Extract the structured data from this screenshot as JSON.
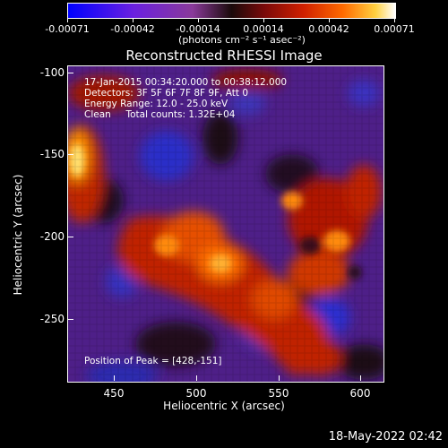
{
  "colorbar": {
    "labels": [
      "-0.00071",
      "-0.00042",
      "-0.00014",
      "0.00014",
      "0.00042",
      "0.00071"
    ],
    "units": "(photons cm⁻² s⁻¹ asec⁻²)"
  },
  "plot": {
    "title": "Reconstructed RHESSI Image",
    "info": {
      "time": "17-Jan-2015 00:34:20.000 to 00:38:12.000",
      "detectors": "Detectors: 3F 5F 6F 7F 8F 9F, Att 0",
      "energy": "Energy Range: 12.0 - 25.0 keV",
      "method": "Clean     Total counts: 1.32E+04",
      "peak": "Position of Peak = [428,-151]"
    },
    "xlabel": "Heliocentric X (arcsec)",
    "ylabel": "Heliocentric Y (arcsec)",
    "xticks": [
      "450",
      "500",
      "550",
      "600"
    ],
    "yticks": [
      "-100",
      "-150",
      "-200",
      "-250"
    ]
  },
  "timestamp": "18-May-2022 02:42",
  "colors": {
    "background": "#000000",
    "negative": "#0000ff",
    "positive": "#ffffff"
  }
}
